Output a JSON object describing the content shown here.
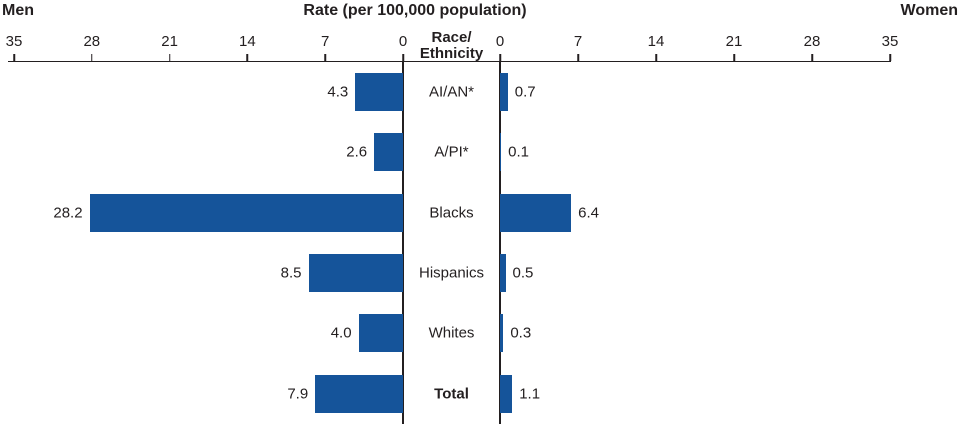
{
  "header": {
    "left": "Men",
    "title": "Rate (per 100,000 population)",
    "right": "Women"
  },
  "center_axis_label": {
    "line1": "Race/",
    "line2": "Ethnicity"
  },
  "chart_data": {
    "type": "bar",
    "orientation": "diverging-horizontal",
    "title": "Rate (per 100,000 population)",
    "categories": [
      "AI/AN*",
      "A/PI*",
      "Blacks",
      "Hispanics",
      "Whites",
      "Total"
    ],
    "series": [
      {
        "name": "Men",
        "side": "left",
        "values": [
          4.3,
          2.6,
          28.2,
          8.5,
          4.0,
          7.9
        ]
      },
      {
        "name": "Women",
        "side": "right",
        "values": [
          0.7,
          0.1,
          6.4,
          0.5,
          0.3,
          1.1
        ]
      }
    ],
    "axis": {
      "min": 0,
      "max": 35,
      "ticks": [
        0,
        7,
        14,
        21,
        28,
        35
      ]
    },
    "bar_color": "#15549A",
    "value_label_decimals": 1,
    "bold_categories": [
      "Total"
    ],
    "center_label": "Race/Ethnicity",
    "grid": false,
    "legend": "none (Men left / Women right headers)"
  }
}
